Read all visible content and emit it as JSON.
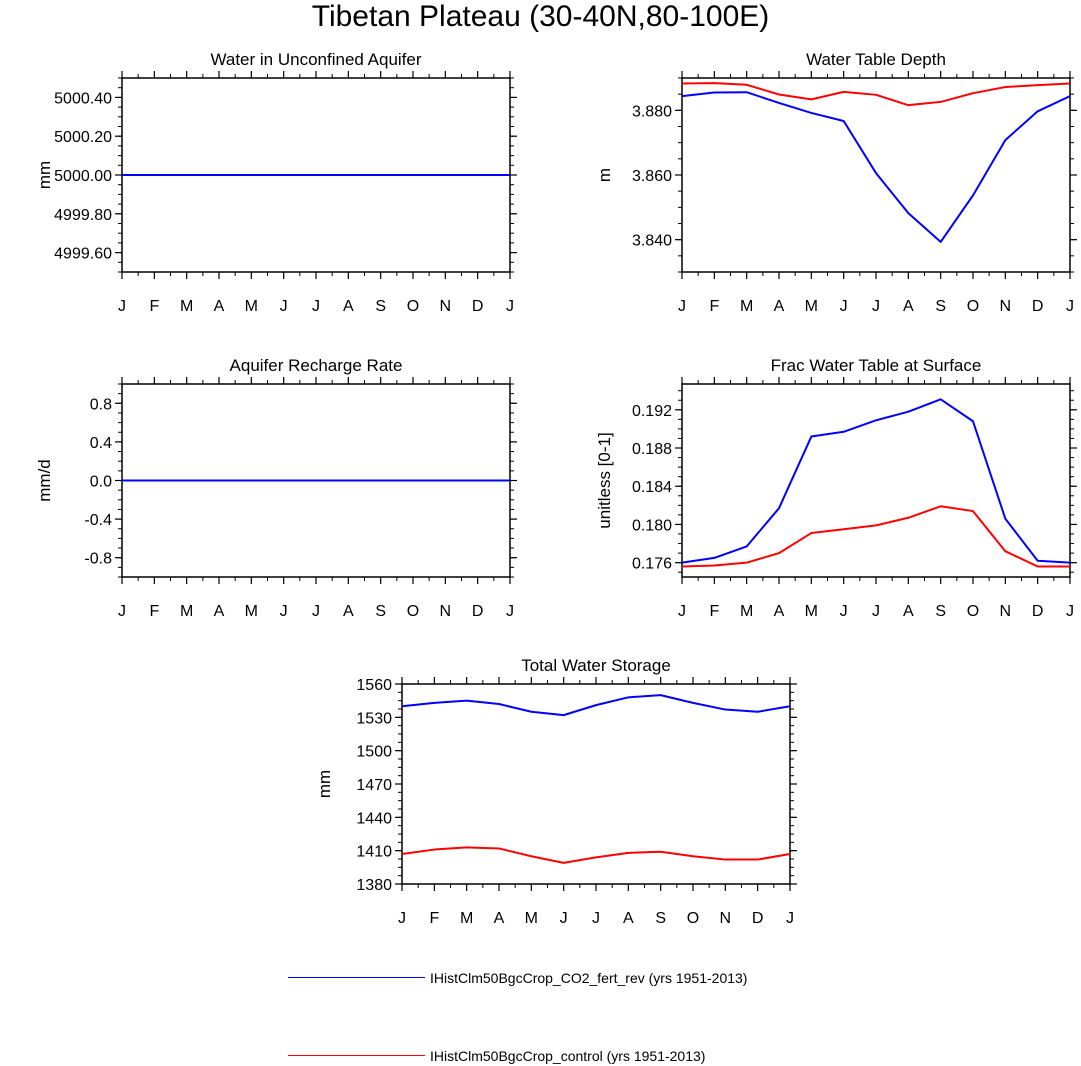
{
  "title": "Tibetan Plateau (30-40N,80-100E)",
  "legend": [
    {
      "name": "IHistClm50BgcCrop_CO2_fert_rev (yrs 1951-2013)",
      "color": "#0000ff"
    },
    {
      "name": "IHistClm50BgcCrop_control (yrs 1951-2013)",
      "color": "#ff0000"
    }
  ],
  "chart_data": [
    {
      "type": "line",
      "title": "Water in Unconfined Aquifer",
      "ylabel": "mm",
      "ylim": [
        4999.5,
        5000.5
      ],
      "yticks": [
        4999.6,
        4999.8,
        5000.0,
        5000.2,
        5000.4
      ],
      "ytick_labels": [
        "4999.60",
        "4999.80",
        "5000.00",
        "5000.20",
        "5000.40"
      ],
      "x": [
        "J",
        "F",
        "M",
        "A",
        "M",
        "J",
        "J",
        "A",
        "S",
        "O",
        "N",
        "D",
        "J"
      ],
      "series": [
        {
          "name": "IHistClm50BgcCrop_CO2_fert_rev (yrs 1951-2013)",
          "color": "#0000ff",
          "values": [
            5000,
            5000,
            5000,
            5000,
            5000,
            5000,
            5000,
            5000,
            5000,
            5000,
            5000,
            5000,
            5000
          ]
        },
        {
          "name": "IHistClm50BgcCrop_control (yrs 1951-2013)",
          "color": "#ff0000",
          "values": [
            5000,
            5000,
            5000,
            5000,
            5000,
            5000,
            5000,
            5000,
            5000,
            5000,
            5000,
            5000,
            5000
          ]
        }
      ]
    },
    {
      "type": "line",
      "title": "Water Table Depth",
      "ylabel": "m",
      "ylim": [
        3.83,
        3.89
      ],
      "yticks": [
        3.84,
        3.86,
        3.88
      ],
      "ytick_labels": [
        "3.840",
        "3.860",
        "3.880"
      ],
      "x": [
        "J",
        "F",
        "M",
        "A",
        "M",
        "J",
        "J",
        "A",
        "S",
        "O",
        "N",
        "D",
        "J"
      ],
      "series": [
        {
          "name": "IHistClm50BgcCrop_CO2_fert_rev (yrs 1951-2013)",
          "color": "#0000ff",
          "values": [
            3.8844,
            3.8855,
            3.8856,
            3.8823,
            3.8792,
            3.8767,
            3.8606,
            3.8482,
            3.8393,
            3.8537,
            3.8708,
            3.8797,
            3.8844
          ]
        },
        {
          "name": "IHistClm50BgcCrop_control (yrs 1951-2013)",
          "color": "#ff0000",
          "values": [
            3.8883,
            3.8884,
            3.8879,
            3.8849,
            3.8834,
            3.8857,
            3.8848,
            3.8816,
            3.8826,
            3.8853,
            3.8872,
            3.8878,
            3.8883
          ]
        }
      ]
    },
    {
      "type": "line",
      "title": "Aquifer Recharge Rate",
      "ylabel": "mm/d",
      "ylim": [
        -1.0,
        1.0
      ],
      "yticks": [
        -0.8,
        -0.4,
        0.0,
        0.4,
        0.8
      ],
      "ytick_labels": [
        "-0.8",
        "-0.4",
        "0.0",
        "0.4",
        "0.8"
      ],
      "x": [
        "J",
        "F",
        "M",
        "A",
        "M",
        "J",
        "J",
        "A",
        "S",
        "O",
        "N",
        "D",
        "J"
      ],
      "series": [
        {
          "name": "IHistClm50BgcCrop_CO2_fert_rev (yrs 1951-2013)",
          "color": "#0000ff",
          "values": [
            0,
            0,
            0,
            0,
            0,
            0,
            0,
            0,
            0,
            0,
            0,
            0,
            0
          ]
        },
        {
          "name": "IHistClm50BgcCrop_control (yrs 1951-2013)",
          "color": "#ff0000",
          "values": [
            0,
            0,
            0,
            0,
            0,
            0,
            0,
            0,
            0,
            0,
            0,
            0,
            0
          ]
        }
      ]
    },
    {
      "type": "line",
      "title": "Frac Water Table at Surface",
      "ylabel": "unitless [0-1]",
      "ylim": [
        0.1745,
        0.1947
      ],
      "yticks": [
        0.176,
        0.18,
        0.184,
        0.188,
        0.192
      ],
      "ytick_labels": [
        "0.176",
        "0.180",
        "0.184",
        "0.188",
        "0.192"
      ],
      "x": [
        "J",
        "F",
        "M",
        "A",
        "M",
        "J",
        "J",
        "A",
        "S",
        "O",
        "N",
        "D",
        "J"
      ],
      "series": [
        {
          "name": "IHistClm50BgcCrop_CO2_fert_rev (yrs 1951-2013)",
          "color": "#0000ff",
          "values": [
            0.176,
            0.1765,
            0.1777,
            0.1817,
            0.1892,
            0.1897,
            0.1909,
            0.1918,
            0.1931,
            0.1908,
            0.1806,
            0.1762,
            0.176
          ]
        },
        {
          "name": "IHistClm50BgcCrop_control (yrs 1951-2013)",
          "color": "#ff0000",
          "values": [
            0.1756,
            0.1757,
            0.176,
            0.177,
            0.1791,
            0.1795,
            0.1799,
            0.1807,
            0.1819,
            0.1814,
            0.1772,
            0.1756,
            0.1756
          ]
        }
      ]
    },
    {
      "type": "line",
      "title": "Total Water Storage",
      "ylabel": "mm",
      "ylim": [
        1380,
        1560
      ],
      "yticks": [
        1380,
        1410,
        1440,
        1470,
        1500,
        1530,
        1560
      ],
      "ytick_labels": [
        "1380",
        "1410",
        "1440",
        "1470",
        "1500",
        "1530",
        "1560"
      ],
      "x": [
        "J",
        "F",
        "M",
        "A",
        "M",
        "J",
        "J",
        "A",
        "S",
        "O",
        "N",
        "D",
        "J"
      ],
      "series": [
        {
          "name": "IHistClm50BgcCrop_CO2_fert_rev (yrs 1951-2013)",
          "color": "#0000ff",
          "values": [
            1540,
            1543,
            1545,
            1542,
            1535,
            1532,
            1541,
            1548,
            1550,
            1543,
            1537,
            1535,
            1540
          ]
        },
        {
          "name": "IHistClm50BgcCrop_control (yrs 1951-2013)",
          "color": "#ff0000",
          "values": [
            1407,
            1411,
            1413,
            1412,
            1405,
            1399,
            1404,
            1408,
            1409,
            1405,
            1402,
            1402,
            1407
          ]
        }
      ]
    }
  ]
}
